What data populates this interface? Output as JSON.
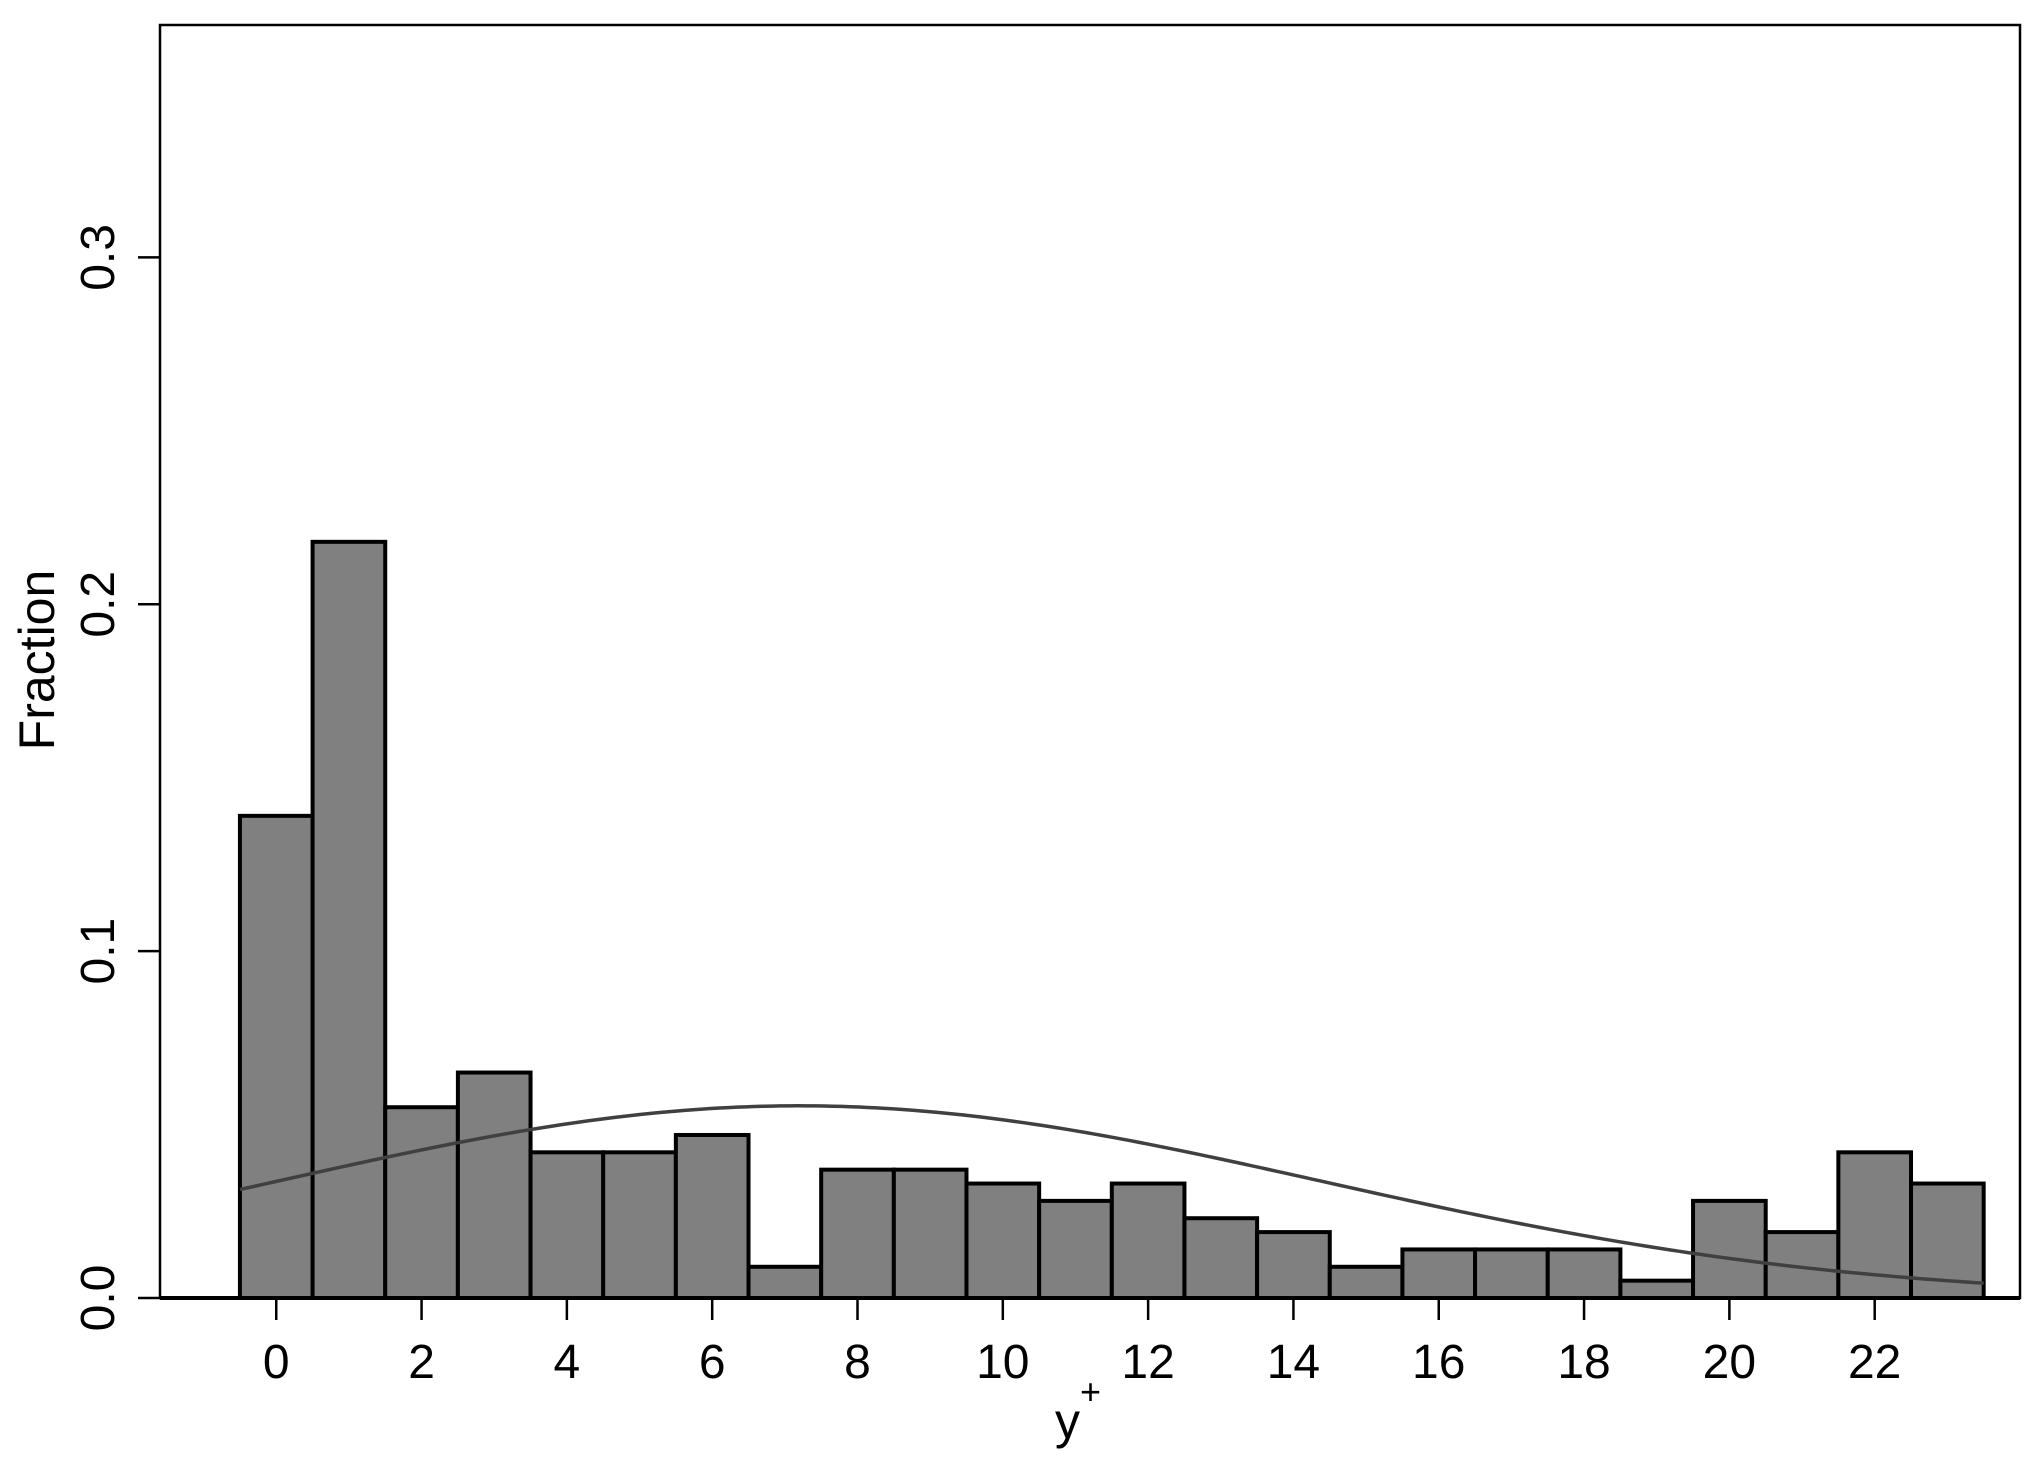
{
  "chart_data": {
    "type": "bar",
    "xlabel": "y",
    "xlabel_superscript": "+",
    "ylabel": "Fraction",
    "xlim": [
      -1.6,
      24
    ],
    "ylim": [
      0,
      0.367
    ],
    "x_ticks": [
      0,
      2,
      4,
      6,
      8,
      10,
      12,
      14,
      16,
      18,
      20,
      22
    ],
    "x_tick_labels": [
      "0",
      "2",
      "4",
      "6",
      "8",
      "10",
      "12",
      "14",
      "16",
      "18",
      "20",
      "22"
    ],
    "y_ticks": [
      0,
      0.1,
      0.2,
      0.3
    ],
    "y_tick_labels": [
      "0.0",
      "0.1",
      "0.2",
      "0.3"
    ],
    "bin_width": 1,
    "categories": [
      0,
      1,
      2,
      3,
      4,
      5,
      6,
      7,
      8,
      9,
      10,
      11,
      12,
      13,
      14,
      15,
      16,
      17,
      18,
      19,
      20,
      21,
      22,
      23
    ],
    "values": [
      0.139,
      0.218,
      0.055,
      0.065,
      0.042,
      0.042,
      0.047,
      0.009,
      0.037,
      0.037,
      0.033,
      0.028,
      0.033,
      0.023,
      0.019,
      0.009,
      0.014,
      0.014,
      0.014,
      0.005,
      0.028,
      0.019,
      0.042,
      0.033
    ],
    "bar_color": "#808080",
    "bar_edge_color": "#000000",
    "overlay_curve": {
      "type": "normal-density",
      "mean": 7.2,
      "sd": 7.2,
      "scale": 1,
      "x_range": [
        -0.5,
        23.5
      ],
      "color": "#404040"
    },
    "grid": false,
    "legend": "none"
  }
}
